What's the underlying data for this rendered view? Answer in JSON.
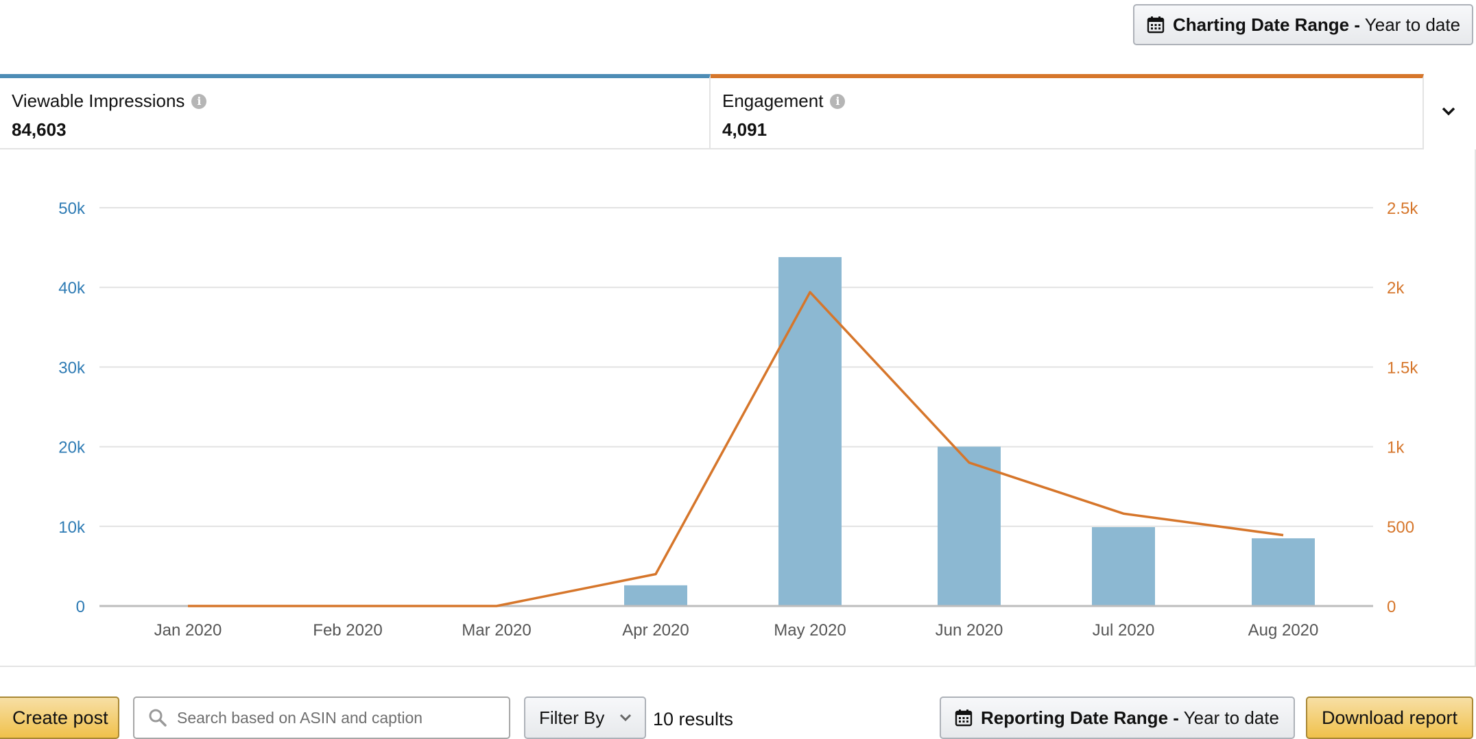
{
  "header": {
    "charting_range_label": "Charting Date Range -",
    "charting_range_value": " Year to date"
  },
  "metrics": {
    "impressions": {
      "label": "Viewable Impressions",
      "value": "84,603",
      "color": "#4d8cb5"
    },
    "engagement": {
      "label": "Engagement",
      "value": "4,091",
      "color": "#d6762b"
    }
  },
  "icons": {
    "calendar": "calendar-icon",
    "info": "info-icon",
    "chevron": "chevron-down-icon",
    "search": "search-icon"
  },
  "chart_data": {
    "type": "bar",
    "categories": [
      "Jan 2020",
      "Feb 2020",
      "Mar 2020",
      "Apr 2020",
      "May 2020",
      "Jun 2020",
      "Jul 2020",
      "Aug 2020"
    ],
    "series": [
      {
        "name": "Viewable Impressions",
        "type": "bar",
        "axis": "left",
        "color": "#8cb8d2",
        "values": [
          0,
          0,
          0,
          2600,
          43800,
          20000,
          9900,
          8500
        ]
      },
      {
        "name": "Engagement",
        "type": "line",
        "axis": "right",
        "color": "#d6762b",
        "values": [
          0,
          0,
          0,
          200,
          1970,
          900,
          580,
          445
        ]
      }
    ],
    "y_left": {
      "min": 0,
      "max": 50000,
      "ticks": [
        "0",
        "10k",
        "20k",
        "30k",
        "40k",
        "50k"
      ],
      "color": "#2e7bb4"
    },
    "y_right": {
      "min": 0,
      "max": 2500,
      "ticks": [
        "0",
        "500",
        "1k",
        "1.5k",
        "2k",
        "2.5k"
      ],
      "color": "#d6762b"
    },
    "grid": true
  },
  "toolbar": {
    "create_post": "Create post",
    "search_placeholder": "Search based on ASIN and caption",
    "filter_by": "Filter By",
    "results": "10 results",
    "reporting_range_label": "Reporting Date Range -",
    "reporting_range_value": " Year to date",
    "download_report": "Download report"
  }
}
